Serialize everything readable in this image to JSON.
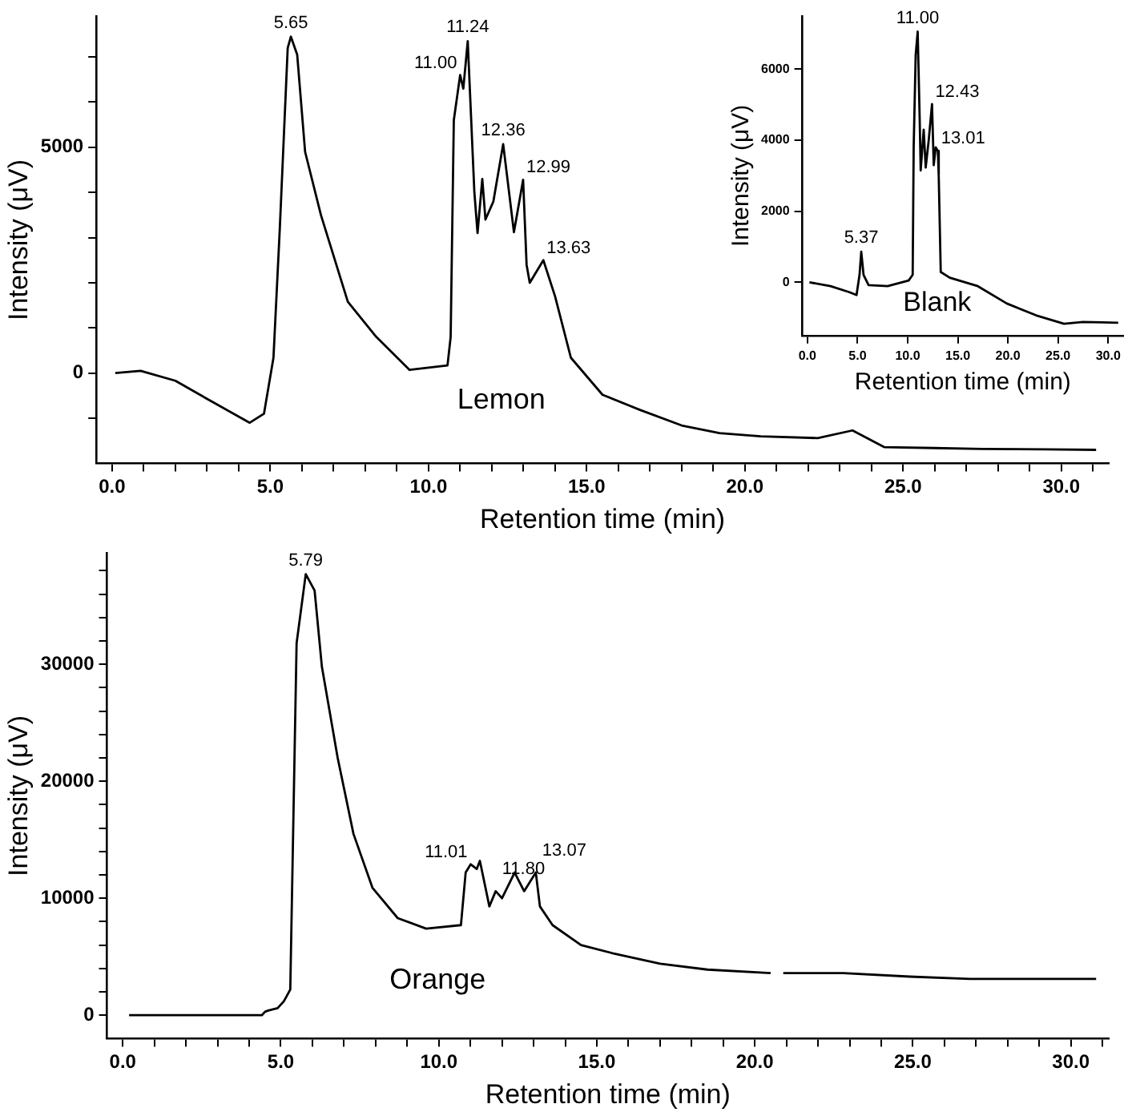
{
  "chart_data": [
    {
      "type": "line",
      "title": "Lemon",
      "xlabel": "Retention time (min)",
      "ylabel": "Intensity (μV)",
      "color": "#000000",
      "x": [
        0.1,
        0.9,
        2.0,
        3.2,
        4.35,
        4.8,
        5.1,
        5.3,
        5.55,
        5.65,
        5.85,
        6.1,
        6.6,
        7.45,
        8.35,
        9.4,
        10.6,
        10.7,
        10.8,
        11.0,
        11.1,
        11.24,
        11.45,
        11.55,
        11.7,
        11.8,
        12.05,
        12.36,
        12.7,
        12.99,
        13.1,
        13.2,
        13.63,
        14.0,
        14.5,
        15.5,
        16.7,
        18.0,
        19.2,
        20.5,
        22.3,
        23.4,
        24.4,
        26.0,
        27.5,
        29.5,
        31.1
      ],
      "values": [
        0,
        50,
        -170,
        -650,
        -1100,
        -900,
        340,
        3200,
        7200,
        7450,
        7050,
        4900,
        3500,
        1580,
        800,
        70,
        170,
        800,
        5600,
        6600,
        6300,
        7350,
        4000,
        3100,
        4300,
        3400,
        3800,
        5070,
        3120,
        4280,
        2400,
        2000,
        2500,
        1700,
        340,
        -480,
        -820,
        -1160,
        -1330,
        -1400,
        -1440,
        -1270,
        -1640,
        -1660,
        -1680,
        -1690,
        -1700
      ],
      "xlim": [
        -0.5,
        31.5
      ],
      "xticks": [
        {
          "value": 0,
          "label": "0.0"
        },
        {
          "value": 1,
          "label": null
        },
        {
          "value": 2,
          "label": null
        },
        {
          "value": 3,
          "label": null
        },
        {
          "value": 4,
          "label": null
        },
        {
          "value": 5,
          "label": "5.0"
        },
        {
          "value": 6,
          "label": null
        },
        {
          "value": 7,
          "label": null
        },
        {
          "value": 8,
          "label": null
        },
        {
          "value": 9,
          "label": null
        },
        {
          "value": 10,
          "label": "10.0"
        },
        {
          "value": 11,
          "label": null
        },
        {
          "value": 12,
          "label": null
        },
        {
          "value": 13,
          "label": null
        },
        {
          "value": 14,
          "label": null
        },
        {
          "value": 15,
          "label": "15.0"
        },
        {
          "value": 16,
          "label": null
        },
        {
          "value": 17,
          "label": null
        },
        {
          "value": 18,
          "label": null
        },
        {
          "value": 19,
          "label": null
        },
        {
          "value": 20,
          "label": "20.0"
        },
        {
          "value": 21,
          "label": null
        },
        {
          "value": 22,
          "label": null
        },
        {
          "value": 23,
          "label": null
        },
        {
          "value": 24,
          "label": null
        },
        {
          "value": 25,
          "label": "25.0"
        },
        {
          "value": 26,
          "label": null
        },
        {
          "value": 27,
          "label": null
        },
        {
          "value": 28,
          "label": null
        },
        {
          "value": 29,
          "label": null
        },
        {
          "value": 30,
          "label": "30.0"
        },
        {
          "value": 31,
          "label": null
        }
      ],
      "ylim": [
        -2000,
        7900
      ],
      "yticks": [
        {
          "value": -1000,
          "label": null
        },
        0,
        {
          "value": 1000,
          "label": null
        },
        {
          "value": 2000,
          "label": null
        },
        {
          "value": 3000,
          "label": null
        },
        {
          "value": 4000,
          "label": null
        },
        5000,
        {
          "value": 6000,
          "label": null
        },
        {
          "value": 7000,
          "label": null
        }
      ],
      "annotations": [
        {
          "text": "5.65",
          "x": 5.65,
          "y": 7450
        },
        {
          "text": "11.00",
          "x": 11.0,
          "y": 6600
        },
        {
          "text": "11.24",
          "x": 11.24,
          "y": 7350
        },
        {
          "text": "12.36",
          "x": 12.36,
          "y": 5070
        },
        {
          "text": "12.99",
          "x": 12.99,
          "y": 4280
        },
        {
          "text": "13.63",
          "x": 13.63,
          "y": 2500
        }
      ]
    },
    {
      "type": "line",
      "title": "Blank",
      "xlabel": "Retention time (min)",
      "ylabel": "Intensity (μV)",
      "color": "#000000",
      "x": [
        0.2,
        2.3,
        4.2,
        4.9,
        5.2,
        5.37,
        5.6,
        6.1,
        8.0,
        10.1,
        10.5,
        10.6,
        10.8,
        11.0,
        11.2,
        11.3,
        11.6,
        11.8,
        12.1,
        12.43,
        12.6,
        12.8,
        13.01,
        13.1,
        13.3,
        14.2,
        17.0,
        19.9,
        22.8,
        25.6,
        27.5,
        29.5,
        31.0
      ],
      "values": [
        0,
        -110,
        -280,
        -360,
        210,
        860,
        210,
        -80,
        -110,
        50,
        210,
        3800,
        6400,
        7060,
        4600,
        3150,
        4300,
        3230,
        4000,
        5020,
        3300,
        3800,
        3700,
        3000,
        290,
        130,
        -110,
        -600,
        -930,
        -1170,
        -1120,
        -1130,
        -1140
      ],
      "xlim": [
        -0.5,
        31.5
      ],
      "xticks": [
        {
          "value": 0,
          "label": "0.0"
        },
        {
          "value": 5,
          "label": "5.0"
        },
        {
          "value": 10,
          "label": "10.0"
        },
        {
          "value": 15,
          "label": "15.0"
        },
        {
          "value": 20,
          "label": "20.0"
        },
        {
          "value": 25,
          "label": "25.0"
        },
        {
          "value": 30,
          "label": "30.0"
        }
      ],
      "ylim": [
        -1500,
        7500
      ],
      "yticks": [
        0,
        2000,
        4000,
        6000
      ],
      "annotations": [
        {
          "text": "5.37",
          "x": 5.37,
          "y": 860
        },
        {
          "text": "11.00",
          "x": 11.0,
          "y": 7060
        },
        {
          "text": "12.43",
          "x": 12.43,
          "y": 5020
        },
        {
          "text": "13.01",
          "x": 13.01,
          "y": 3700
        }
      ]
    },
    {
      "type": "line",
      "title": "Orange",
      "xlabel": "Retention time (min)",
      "ylabel": "Intensity (μV)",
      "color": "#000000",
      "x": [
        0.2,
        2.0,
        4.4,
        4.5,
        4.6,
        4.9,
        5.1,
        5.3,
        5.5,
        5.79,
        6.07,
        6.3,
        6.8,
        7.3,
        7.9,
        8.7,
        9.6,
        10.7,
        10.85,
        11.01,
        11.2,
        11.3,
        11.6,
        11.8,
        12.0,
        12.4,
        12.7,
        13.07,
        13.2,
        13.6,
        14.5,
        15.5,
        17.0,
        18.5,
        20.5,
        20.7,
        20.9,
        22.8,
        24.9,
        26.8,
        29.0,
        30.8
      ],
      "values": [
        0,
        0,
        0,
        300,
        400,
        600,
        1200,
        2200,
        31800,
        37700,
        36300,
        29800,
        22000,
        15500,
        10900,
        8300,
        7400,
        7700,
        12200,
        12900,
        12500,
        13200,
        9300,
        10600,
        10000,
        12200,
        10600,
        12200,
        9300,
        7700,
        6000,
        5300,
        4400,
        3900,
        3600,
        null,
        3600,
        3600,
        3300,
        3100,
        3100,
        3100
      ],
      "xlim": [
        -0.5,
        31.2
      ],
      "xticks": [
        {
          "value": 0,
          "label": "0.0"
        },
        {
          "value": 1,
          "label": null
        },
        {
          "value": 2,
          "label": null
        },
        {
          "value": 3,
          "label": null
        },
        {
          "value": 4,
          "label": null
        },
        {
          "value": 5,
          "label": "5.0"
        },
        {
          "value": 6,
          "label": null
        },
        {
          "value": 7,
          "label": null
        },
        {
          "value": 8,
          "label": null
        },
        {
          "value": 9,
          "label": null
        },
        {
          "value": 10,
          "label": "10.0"
        },
        {
          "value": 11,
          "label": null
        },
        {
          "value": 12,
          "label": null
        },
        {
          "value": 13,
          "label": null
        },
        {
          "value": 14,
          "label": null
        },
        {
          "value": 15,
          "label": "15.0"
        },
        {
          "value": 16,
          "label": null
        },
        {
          "value": 17,
          "label": null
        },
        {
          "value": 18,
          "label": null
        },
        {
          "value": 19,
          "label": null
        },
        {
          "value": 20,
          "label": "20.0"
        },
        {
          "value": 21,
          "label": null
        },
        {
          "value": 22,
          "label": null
        },
        {
          "value": 23,
          "label": null
        },
        {
          "value": 24,
          "label": null
        },
        {
          "value": 25,
          "label": "25.0"
        },
        {
          "value": 26,
          "label": null
        },
        {
          "value": 27,
          "label": null
        },
        {
          "value": 28,
          "label": null
        },
        {
          "value": 29,
          "label": null
        },
        {
          "value": 30,
          "label": "30.0"
        },
        {
          "value": 31,
          "label": null
        }
      ],
      "ylim": [
        -2000,
        39500
      ],
      "yticks": [
        0,
        {
          "value": 2000,
          "label": null
        },
        {
          "value": 4000,
          "label": null
        },
        {
          "value": 6000,
          "label": null
        },
        {
          "value": 8000,
          "label": null
        },
        10000,
        {
          "value": 12000,
          "label": null
        },
        {
          "value": 14000,
          "label": null
        },
        {
          "value": 16000,
          "label": null
        },
        {
          "value": 18000,
          "label": null
        },
        20000,
        {
          "value": 22000,
          "label": null
        },
        {
          "value": 24000,
          "label": null
        },
        {
          "value": 26000,
          "label": null
        },
        {
          "value": 28000,
          "label": null
        },
        30000,
        {
          "value": 32000,
          "label": null
        },
        {
          "value": 34000,
          "label": null
        },
        {
          "value": 36000,
          "label": null
        },
        {
          "value": 38000,
          "label": null
        }
      ],
      "annotations": [
        {
          "text": "5.79",
          "x": 5.79,
          "y": 37700
        },
        {
          "text": "11.01",
          "x": 11.01,
          "y": 12900
        },
        {
          "text": "11.80",
          "x": 11.8,
          "y": 10600
        },
        {
          "text": "13.07",
          "x": 13.07,
          "y": 12200
        }
      ]
    }
  ]
}
